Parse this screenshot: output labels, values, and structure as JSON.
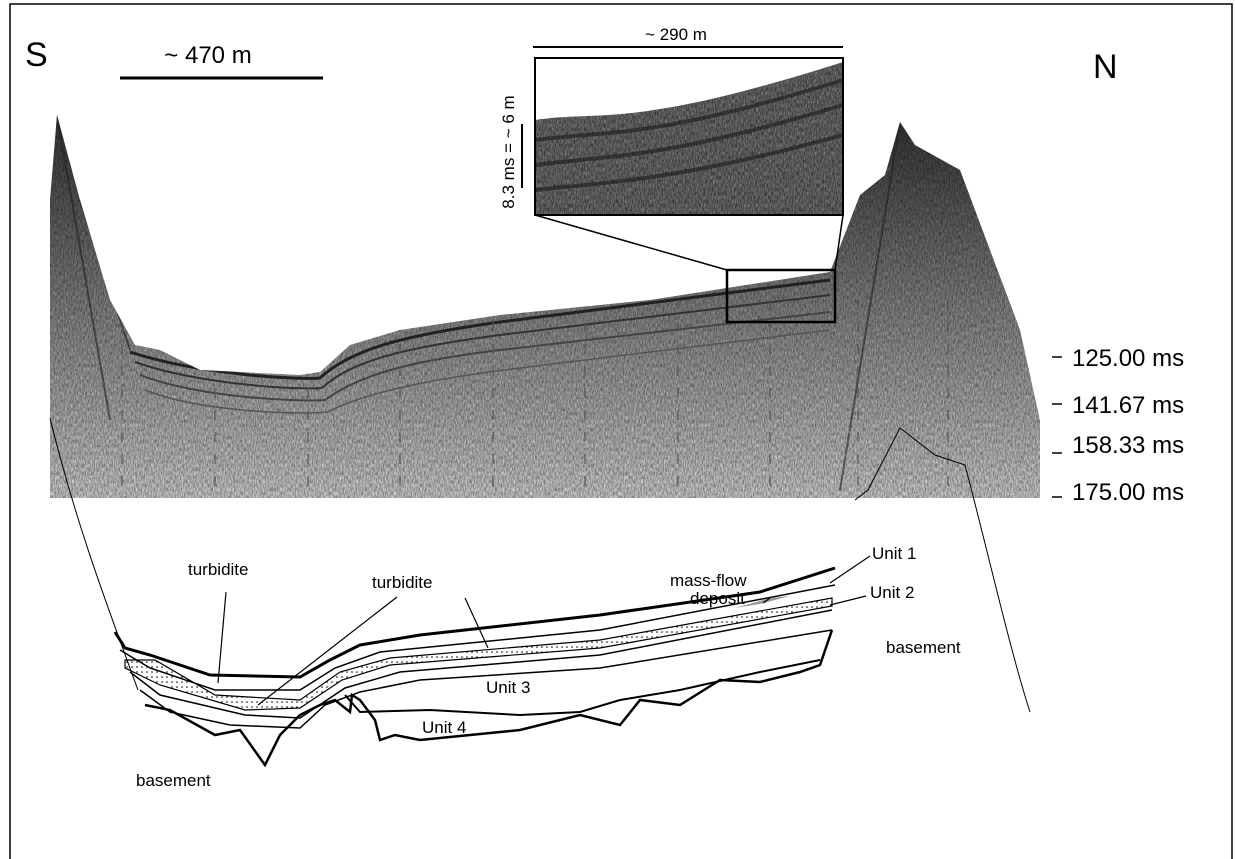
{
  "header": {
    "south": "S",
    "north": "N"
  },
  "scale_bars": {
    "main_horizontal": "~ 470 m",
    "inset_horizontal": "~ 290 m",
    "inset_vertical": "8.3 ms = ~ 6 m"
  },
  "depth_labels": [
    "125.00 ms",
    "141.67 ms",
    "158.33 ms",
    "175.00 ms"
  ],
  "interpretation": {
    "turbidite_left": "turbidite",
    "turbidite_middle": "turbidite",
    "mass_flow": [
      "mass-flow",
      "deposit"
    ],
    "unit_1": "Unit 1",
    "unit_2": "Unit 2",
    "unit_3": "Unit 3",
    "unit_4": "Unit 4",
    "basement_right": "basement",
    "basement_left": "basement"
  }
}
